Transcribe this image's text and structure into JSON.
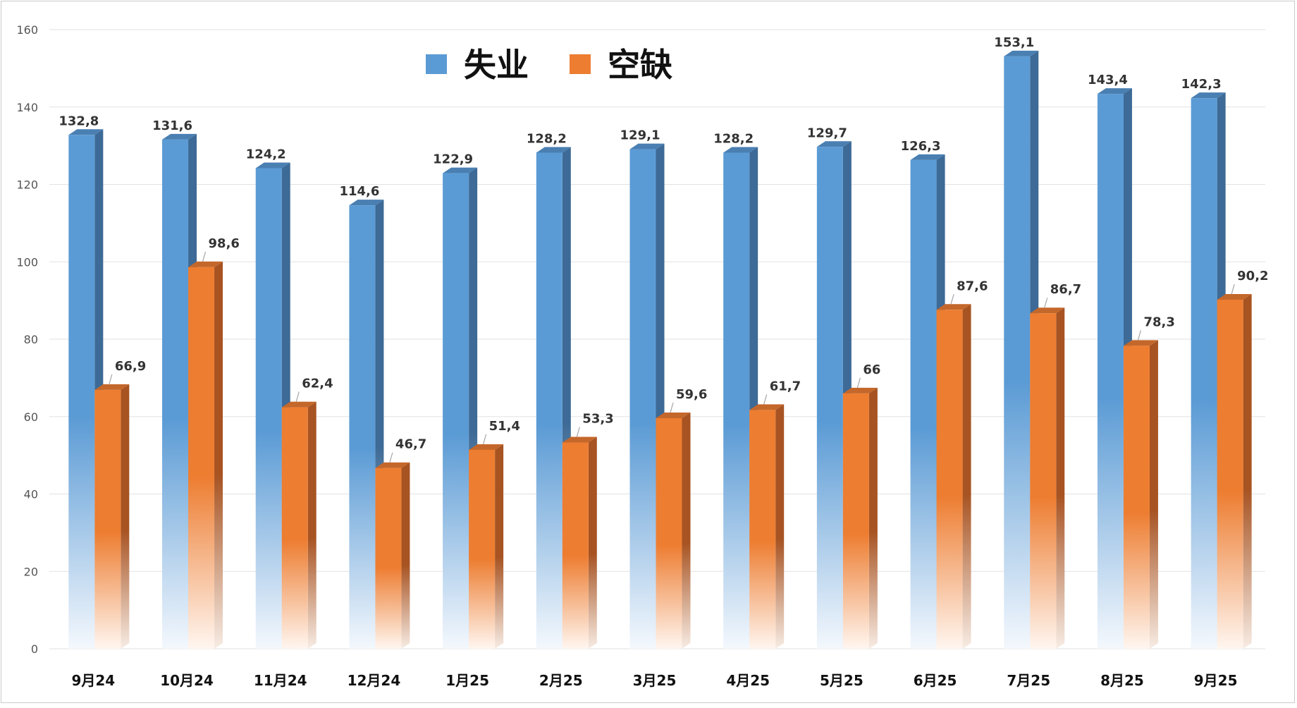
{
  "chart_data": {
    "type": "bar",
    "categories": [
      "9月24",
      "10月24",
      "11月24",
      "12月24",
      "1月25",
      "2月25",
      "3月25",
      "4月25",
      "5月25",
      "6月25",
      "7月25",
      "8月25",
      "9月25"
    ],
    "series": [
      {
        "name": "失业",
        "color": "#5b9bd5",
        "values": [
          132.8,
          131.6,
          124.2,
          114.6,
          122.9,
          128.2,
          129.1,
          128.2,
          129.7,
          126.3,
          153.1,
          143.4,
          142.3
        ],
        "labels": [
          "132,8",
          "131,6",
          "124,2",
          "114,6",
          "122,9",
          "128,2",
          "129,1",
          "128,2",
          "129,7",
          "126,3",
          "153,1",
          "143,4",
          "142,3"
        ]
      },
      {
        "name": "空缺",
        "color": "#ed7d31",
        "values": [
          66.9,
          98.6,
          62.4,
          46.7,
          51.4,
          53.3,
          59.6,
          61.7,
          66,
          87.6,
          86.7,
          78.3,
          90.2
        ],
        "labels": [
          "66,9",
          "98,6",
          "62,4",
          "46,7",
          "51,4",
          "53,3",
          "59,6",
          "61,7",
          "66",
          "87,6",
          "86,7",
          "78,3",
          "90,2"
        ]
      }
    ],
    "title": "",
    "xlabel": "",
    "ylabel": "",
    "ylim": [
      0,
      160
    ],
    "yticks": [
      "0",
      "20",
      "40",
      "60",
      "80",
      "100",
      "120",
      "140",
      "160"
    ],
    "grid": true,
    "legend_position": "top-center"
  }
}
